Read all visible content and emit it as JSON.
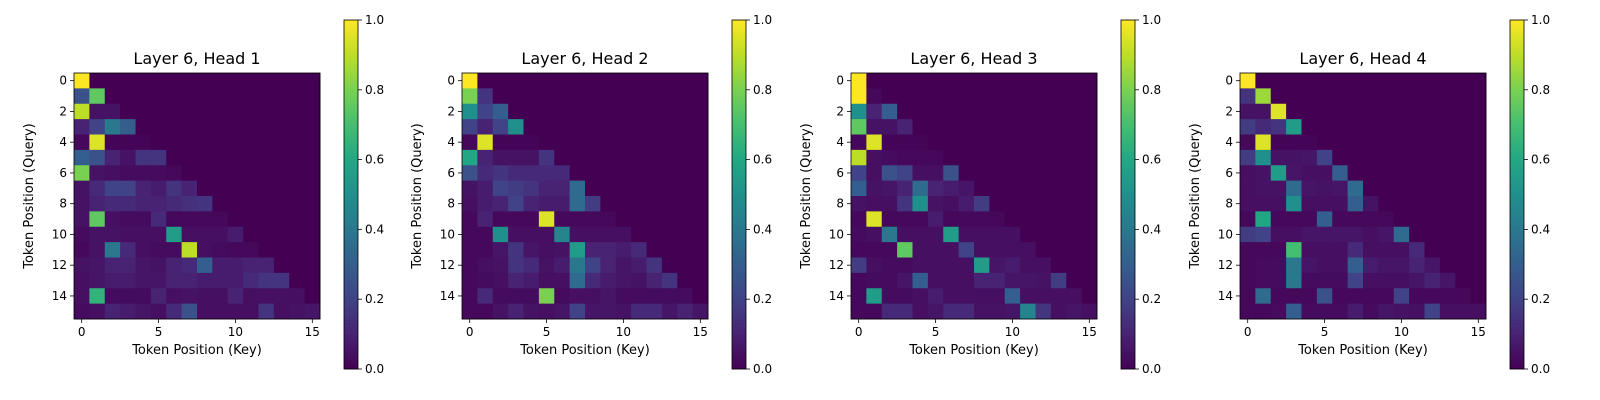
{
  "colormap": "viridis",
  "chart_data": [
    {
      "type": "heatmap",
      "title": "Layer 6, Head 1",
      "xlabel": "Token Position (Key)",
      "ylabel": "Token Position (Query)",
      "xticks": [
        0,
        5,
        10,
        15
      ],
      "yticks": [
        0,
        2,
        4,
        6,
        8,
        10,
        12,
        14
      ],
      "colorbar": {
        "range": [
          0.0,
          1.0
        ],
        "ticks": [
          "0.0",
          "0.2",
          "0.4",
          "0.6",
          "0.8",
          "1.0"
        ]
      },
      "values": [
        [
          1.0,
          0,
          0,
          0,
          0,
          0,
          0,
          0,
          0,
          0,
          0,
          0,
          0,
          0,
          0,
          0
        ],
        [
          0.25,
          0.75,
          0,
          0,
          0,
          0,
          0,
          0,
          0,
          0,
          0,
          0,
          0,
          0,
          0,
          0
        ],
        [
          0.9,
          0.05,
          0.05,
          0,
          0,
          0,
          0,
          0,
          0,
          0,
          0,
          0,
          0,
          0,
          0,
          0
        ],
        [
          0.1,
          0.2,
          0.4,
          0.3,
          0,
          0,
          0,
          0,
          0,
          0,
          0,
          0,
          0,
          0,
          0,
          0
        ],
        [
          0.02,
          0.95,
          0.01,
          0.01,
          0.01,
          0,
          0,
          0,
          0,
          0,
          0,
          0,
          0,
          0,
          0,
          0
        ],
        [
          0.3,
          0.25,
          0.1,
          0.05,
          0.15,
          0.15,
          0,
          0,
          0,
          0,
          0,
          0,
          0,
          0,
          0,
          0
        ],
        [
          0.8,
          0.05,
          0.04,
          0.03,
          0.03,
          0.03,
          0.02,
          0,
          0,
          0,
          0,
          0,
          0,
          0,
          0,
          0
        ],
        [
          0.05,
          0.12,
          0.2,
          0.2,
          0.1,
          0.08,
          0.15,
          0.1,
          0,
          0,
          0,
          0,
          0,
          0,
          0,
          0
        ],
        [
          0.05,
          0.1,
          0.12,
          0.12,
          0.1,
          0.1,
          0.12,
          0.14,
          0.15,
          0,
          0,
          0,
          0,
          0,
          0,
          0
        ],
        [
          0.05,
          0.75,
          0.04,
          0.03,
          0.03,
          0.12,
          0.02,
          0.02,
          0.02,
          0.02,
          0,
          0,
          0,
          0,
          0,
          0
        ],
        [
          0.03,
          0.05,
          0.05,
          0.04,
          0.04,
          0.04,
          0.55,
          0.04,
          0.04,
          0.04,
          0.08,
          0,
          0,
          0,
          0,
          0
        ],
        [
          0.02,
          0.05,
          0.4,
          0.12,
          0.04,
          0.03,
          0.03,
          0.9,
          0.04,
          0.03,
          0.02,
          0.02,
          0,
          0,
          0,
          0
        ],
        [
          0.05,
          0.06,
          0.1,
          0.1,
          0.06,
          0.05,
          0.1,
          0.12,
          0.3,
          0.08,
          0.08,
          0.1,
          0.1,
          0,
          0,
          0
        ],
        [
          0.04,
          0.06,
          0.08,
          0.08,
          0.06,
          0.06,
          0.1,
          0.1,
          0.08,
          0.08,
          0.08,
          0.12,
          0.15,
          0.15,
          0,
          0
        ],
        [
          0.04,
          0.65,
          0.03,
          0.03,
          0.03,
          0.1,
          0.04,
          0.05,
          0.04,
          0.04,
          0.1,
          0.04,
          0.04,
          0.04,
          0.04,
          0
        ],
        [
          0.03,
          0.04,
          0.1,
          0.08,
          0.06,
          0.04,
          0.12,
          0.25,
          0.04,
          0.04,
          0.04,
          0.04,
          0.15,
          0.04,
          0.05,
          0.06
        ]
      ]
    },
    {
      "type": "heatmap",
      "title": "Layer 6, Head 2",
      "xlabel": "Token Position (Key)",
      "ylabel": "Token Position (Query)",
      "xticks": [
        0,
        5,
        10,
        15
      ],
      "yticks": [
        0,
        2,
        4,
        6,
        8,
        10,
        12,
        14
      ],
      "colorbar": {
        "range": [
          0.0,
          1.0
        ],
        "ticks": [
          "0.0",
          "0.2",
          "0.4",
          "0.6",
          "0.8",
          "1.0"
        ]
      },
      "values": [
        [
          1.0,
          0,
          0,
          0,
          0,
          0,
          0,
          0,
          0,
          0,
          0,
          0,
          0,
          0,
          0,
          0
        ],
        [
          0.8,
          0.15,
          0,
          0,
          0,
          0,
          0,
          0,
          0,
          0,
          0,
          0,
          0,
          0,
          0,
          0
        ],
        [
          0.5,
          0.2,
          0.3,
          0,
          0,
          0,
          0,
          0,
          0,
          0,
          0,
          0,
          0,
          0,
          0,
          0
        ],
        [
          0.2,
          0.1,
          0.2,
          0.5,
          0,
          0,
          0,
          0,
          0,
          0,
          0,
          0,
          0,
          0,
          0,
          0
        ],
        [
          0.02,
          0.95,
          0.01,
          0.01,
          0.01,
          0,
          0,
          0,
          0,
          0,
          0,
          0,
          0,
          0,
          0,
          0
        ],
        [
          0.6,
          0.1,
          0.05,
          0.05,
          0.05,
          0.15,
          0,
          0,
          0,
          0,
          0,
          0,
          0,
          0,
          0,
          0
        ],
        [
          0.25,
          0.12,
          0.15,
          0.12,
          0.12,
          0.12,
          0.12,
          0,
          0,
          0,
          0,
          0,
          0,
          0,
          0,
          0
        ],
        [
          0.05,
          0.08,
          0.2,
          0.18,
          0.15,
          0.1,
          0.1,
          0.35,
          0,
          0,
          0,
          0,
          0,
          0,
          0,
          0
        ],
        [
          0.04,
          0.08,
          0.1,
          0.2,
          0.1,
          0.08,
          0.08,
          0.35,
          0.18,
          0,
          0,
          0,
          0,
          0,
          0,
          0
        ],
        [
          0.02,
          0.1,
          0.02,
          0.02,
          0.02,
          0.95,
          0.02,
          0.02,
          0.02,
          0.02,
          0,
          0,
          0,
          0,
          0,
          0
        ],
        [
          0.02,
          0.02,
          0.5,
          0.04,
          0.04,
          0.04,
          0.45,
          0.04,
          0.04,
          0.04,
          0.04,
          0,
          0,
          0,
          0,
          0
        ],
        [
          0.02,
          0.02,
          0.06,
          0.15,
          0.06,
          0.04,
          0.05,
          0.55,
          0.1,
          0.1,
          0.08,
          0.12,
          0,
          0,
          0,
          0
        ],
        [
          0.02,
          0.04,
          0.05,
          0.15,
          0.12,
          0.05,
          0.08,
          0.4,
          0.2,
          0.1,
          0.06,
          0.08,
          0.15,
          0,
          0,
          0
        ],
        [
          0.02,
          0.03,
          0.04,
          0.1,
          0.08,
          0.04,
          0.04,
          0.35,
          0.12,
          0.08,
          0.06,
          0.05,
          0.1,
          0.15,
          0,
          0
        ],
        [
          0.02,
          0.12,
          0.03,
          0.03,
          0.03,
          0.8,
          0.03,
          0.04,
          0.04,
          0.06,
          0.03,
          0.03,
          0.03,
          0.03,
          0.03,
          0
        ],
        [
          0.02,
          0.02,
          0.05,
          0.1,
          0.05,
          0.04,
          0.06,
          0.2,
          0.06,
          0.06,
          0.05,
          0.12,
          0.12,
          0.06,
          0.1,
          0.06
        ]
      ]
    },
    {
      "type": "heatmap",
      "title": "Layer 6, Head 3",
      "xlabel": "Token Position (Key)",
      "ylabel": "Token Position (Query)",
      "xticks": [
        0,
        5,
        10,
        15
      ],
      "yticks": [
        0,
        2,
        4,
        6,
        8,
        10,
        12,
        14
      ],
      "colorbar": {
        "range": [
          0.0,
          1.0
        ],
        "ticks": [
          "0.0",
          "0.2",
          "0.4",
          "0.6",
          "0.8",
          "1.0"
        ]
      },
      "values": [
        [
          1.0,
          0,
          0,
          0,
          0,
          0,
          0,
          0,
          0,
          0,
          0,
          0,
          0,
          0,
          0,
          0
        ],
        [
          1.0,
          0.02,
          0,
          0,
          0,
          0,
          0,
          0,
          0,
          0,
          0,
          0,
          0,
          0,
          0,
          0
        ],
        [
          0.5,
          0.1,
          0.3,
          0,
          0,
          0,
          0,
          0,
          0,
          0,
          0,
          0,
          0,
          0,
          0,
          0
        ],
        [
          0.75,
          0.05,
          0.05,
          0.1,
          0,
          0,
          0,
          0,
          0,
          0,
          0,
          0,
          0,
          0,
          0,
          0
        ],
        [
          0.02,
          0.95,
          0.01,
          0.01,
          0.01,
          0,
          0,
          0,
          0,
          0,
          0,
          0,
          0,
          0,
          0,
          0
        ],
        [
          0.9,
          0.04,
          0.03,
          0.02,
          0.02,
          0.02,
          0,
          0,
          0,
          0,
          0,
          0,
          0,
          0,
          0,
          0
        ],
        [
          0.2,
          0.04,
          0.25,
          0.2,
          0.04,
          0.04,
          0.25,
          0,
          0,
          0,
          0,
          0,
          0,
          0,
          0,
          0
        ],
        [
          0.3,
          0.05,
          0.06,
          0.1,
          0.35,
          0.1,
          0.08,
          0.06,
          0,
          0,
          0,
          0,
          0,
          0,
          0,
          0
        ],
        [
          0.05,
          0.04,
          0.04,
          0.15,
          0.5,
          0.05,
          0.04,
          0.08,
          0.18,
          0,
          0,
          0,
          0,
          0,
          0,
          0
        ],
        [
          0.02,
          0.95,
          0.02,
          0.02,
          0.02,
          0.08,
          0.02,
          0.02,
          0.02,
          0.02,
          0,
          0,
          0,
          0,
          0,
          0
        ],
        [
          0.03,
          0.04,
          0.4,
          0.04,
          0.04,
          0.04,
          0.55,
          0.04,
          0.04,
          0.04,
          0.04,
          0,
          0,
          0,
          0,
          0
        ],
        [
          0.02,
          0.02,
          0.02,
          0.75,
          0.04,
          0.04,
          0.04,
          0.2,
          0.04,
          0.04,
          0.04,
          0.04,
          0,
          0,
          0,
          0
        ],
        [
          0.18,
          0.04,
          0.03,
          0.03,
          0.04,
          0.04,
          0.04,
          0.04,
          0.55,
          0.06,
          0.08,
          0.04,
          0.04,
          0,
          0,
          0
        ],
        [
          0.02,
          0.03,
          0.03,
          0.06,
          0.3,
          0.04,
          0.04,
          0.04,
          0.1,
          0.1,
          0.06,
          0.06,
          0.05,
          0.18,
          0,
          0
        ],
        [
          0.02,
          0.55,
          0.03,
          0.03,
          0.04,
          0.08,
          0.04,
          0.04,
          0.04,
          0.04,
          0.3,
          0.04,
          0.04,
          0.04,
          0.04,
          0
        ],
        [
          0.02,
          0.02,
          0.12,
          0.12,
          0.04,
          0.06,
          0.12,
          0.12,
          0.05,
          0.05,
          0.06,
          0.45,
          0.16,
          0.04,
          0.06,
          0.04
        ]
      ]
    },
    {
      "type": "heatmap",
      "title": "Layer 6, Head 4",
      "xlabel": "Token Position (Key)",
      "ylabel": "Token Position (Query)",
      "xticks": [
        0,
        5,
        10,
        15
      ],
      "yticks": [
        0,
        2,
        4,
        6,
        8,
        10,
        12,
        14
      ],
      "colorbar": {
        "range": [
          0.0,
          1.0
        ],
        "ticks": [
          "0.0",
          "0.2",
          "0.4",
          "0.6",
          "0.8",
          "1.0"
        ]
      },
      "values": [
        [
          1.0,
          0,
          0,
          0,
          0,
          0,
          0,
          0,
          0,
          0,
          0,
          0,
          0,
          0,
          0,
          0
        ],
        [
          0.15,
          0.85,
          0,
          0,
          0,
          0,
          0,
          0,
          0,
          0,
          0,
          0,
          0,
          0,
          0,
          0
        ],
        [
          0.05,
          0.05,
          0.95,
          0,
          0,
          0,
          0,
          0,
          0,
          0,
          0,
          0,
          0,
          0,
          0,
          0
        ],
        [
          0.18,
          0.12,
          0.15,
          0.55,
          0,
          0,
          0,
          0,
          0,
          0,
          0,
          0,
          0,
          0,
          0,
          0
        ],
        [
          0.02,
          0.95,
          0.01,
          0.01,
          0.01,
          0,
          0,
          0,
          0,
          0,
          0,
          0,
          0,
          0,
          0,
          0
        ],
        [
          0.18,
          0.5,
          0.05,
          0.05,
          0.06,
          0.2,
          0,
          0,
          0,
          0,
          0,
          0,
          0,
          0,
          0,
          0
        ],
        [
          0.04,
          0.05,
          0.55,
          0.06,
          0.04,
          0.04,
          0.3,
          0,
          0,
          0,
          0,
          0,
          0,
          0,
          0,
          0
        ],
        [
          0.04,
          0.05,
          0.05,
          0.35,
          0.06,
          0.05,
          0.06,
          0.35,
          0,
          0,
          0,
          0,
          0,
          0,
          0,
          0
        ],
        [
          0.04,
          0.04,
          0.04,
          0.5,
          0.04,
          0.04,
          0.04,
          0.3,
          0.05,
          0,
          0,
          0,
          0,
          0,
          0,
          0
        ],
        [
          0.02,
          0.6,
          0.02,
          0.02,
          0.02,
          0.3,
          0.02,
          0.02,
          0.02,
          0.02,
          0,
          0,
          0,
          0,
          0,
          0
        ],
        [
          0.18,
          0.2,
          0.04,
          0.04,
          0.06,
          0.06,
          0.06,
          0.06,
          0.04,
          0.06,
          0.35,
          0,
          0,
          0,
          0,
          0
        ],
        [
          0.02,
          0.02,
          0.02,
          0.7,
          0.04,
          0.04,
          0.04,
          0.12,
          0.04,
          0.04,
          0.04,
          0.12,
          0,
          0,
          0,
          0
        ],
        [
          0.02,
          0.03,
          0.03,
          0.4,
          0.06,
          0.04,
          0.04,
          0.3,
          0.08,
          0.06,
          0.06,
          0.1,
          0.06,
          0,
          0,
          0
        ],
        [
          0.02,
          0.03,
          0.03,
          0.4,
          0.03,
          0.03,
          0.03,
          0.2,
          0.04,
          0.04,
          0.04,
          0.06,
          0.1,
          0.06,
          0,
          0
        ],
        [
          0.02,
          0.35,
          0.02,
          0.02,
          0.02,
          0.25,
          0.02,
          0.02,
          0.02,
          0.02,
          0.2,
          0.02,
          0.02,
          0.02,
          0.02,
          0
        ],
        [
          0.02,
          0.02,
          0.03,
          0.3,
          0.03,
          0.03,
          0.03,
          0.08,
          0.03,
          0.06,
          0.05,
          0.04,
          0.2,
          0.04,
          0.04,
          0.04
        ]
      ]
    }
  ]
}
